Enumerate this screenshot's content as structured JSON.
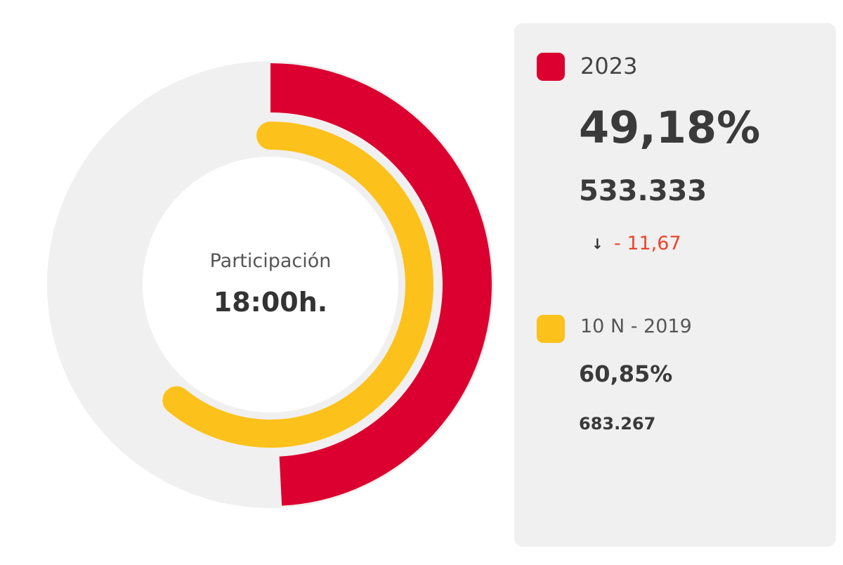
{
  "chart_data": {
    "type": "radial-bar",
    "center_title": "Participación",
    "center_value": "18:00h.",
    "max": 100,
    "series": [
      {
        "name": "2023",
        "value": 49.18,
        "value_label": "49,18%",
        "votes": "533.333",
        "change": "- 11,67",
        "change_direction": "down",
        "color": "#dc0030"
      },
      {
        "name": "10 N - 2019",
        "value": 60.85,
        "value_label": "60,85%",
        "votes": "683.267",
        "color": "#fcc21b"
      }
    ],
    "track_color": "#f0f0f0",
    "change_color": "#e8452c"
  }
}
